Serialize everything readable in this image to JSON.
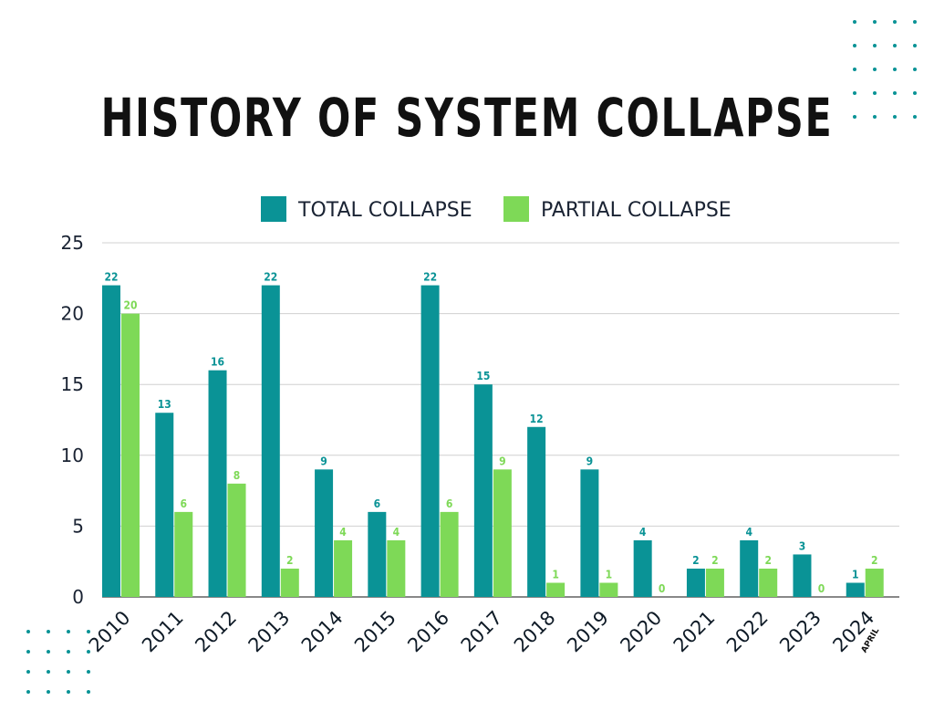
{
  "chart_data": {
    "type": "bar",
    "title": "HISTORY OF SYSTEM COLLAPSE",
    "categories": [
      "2010",
      "2011",
      "2012",
      "2013",
      "2014",
      "2015",
      "2016",
      "2017",
      "2018",
      "2019",
      "2020",
      "2021",
      "2022",
      "2023",
      "2024"
    ],
    "category_note": {
      "2024": "APRIL"
    },
    "series": [
      {
        "name": "TOTAL COLLAPSE",
        "color": "#0a9396",
        "values": [
          22,
          13,
          16,
          22,
          9,
          6,
          22,
          15,
          12,
          9,
          4,
          2,
          4,
          3,
          1
        ]
      },
      {
        "name": "PARTIAL COLLAPSE",
        "color": "#7ed957",
        "values": [
          20,
          6,
          8,
          2,
          4,
          4,
          6,
          9,
          1,
          1,
          0,
          2,
          2,
          0,
          2
        ]
      }
    ],
    "ylim": [
      0,
      25
    ],
    "yticks": [
      0,
      5,
      10,
      15,
      20,
      25
    ],
    "grid": true,
    "legend": "top-center",
    "xlabel": "",
    "ylabel": ""
  }
}
